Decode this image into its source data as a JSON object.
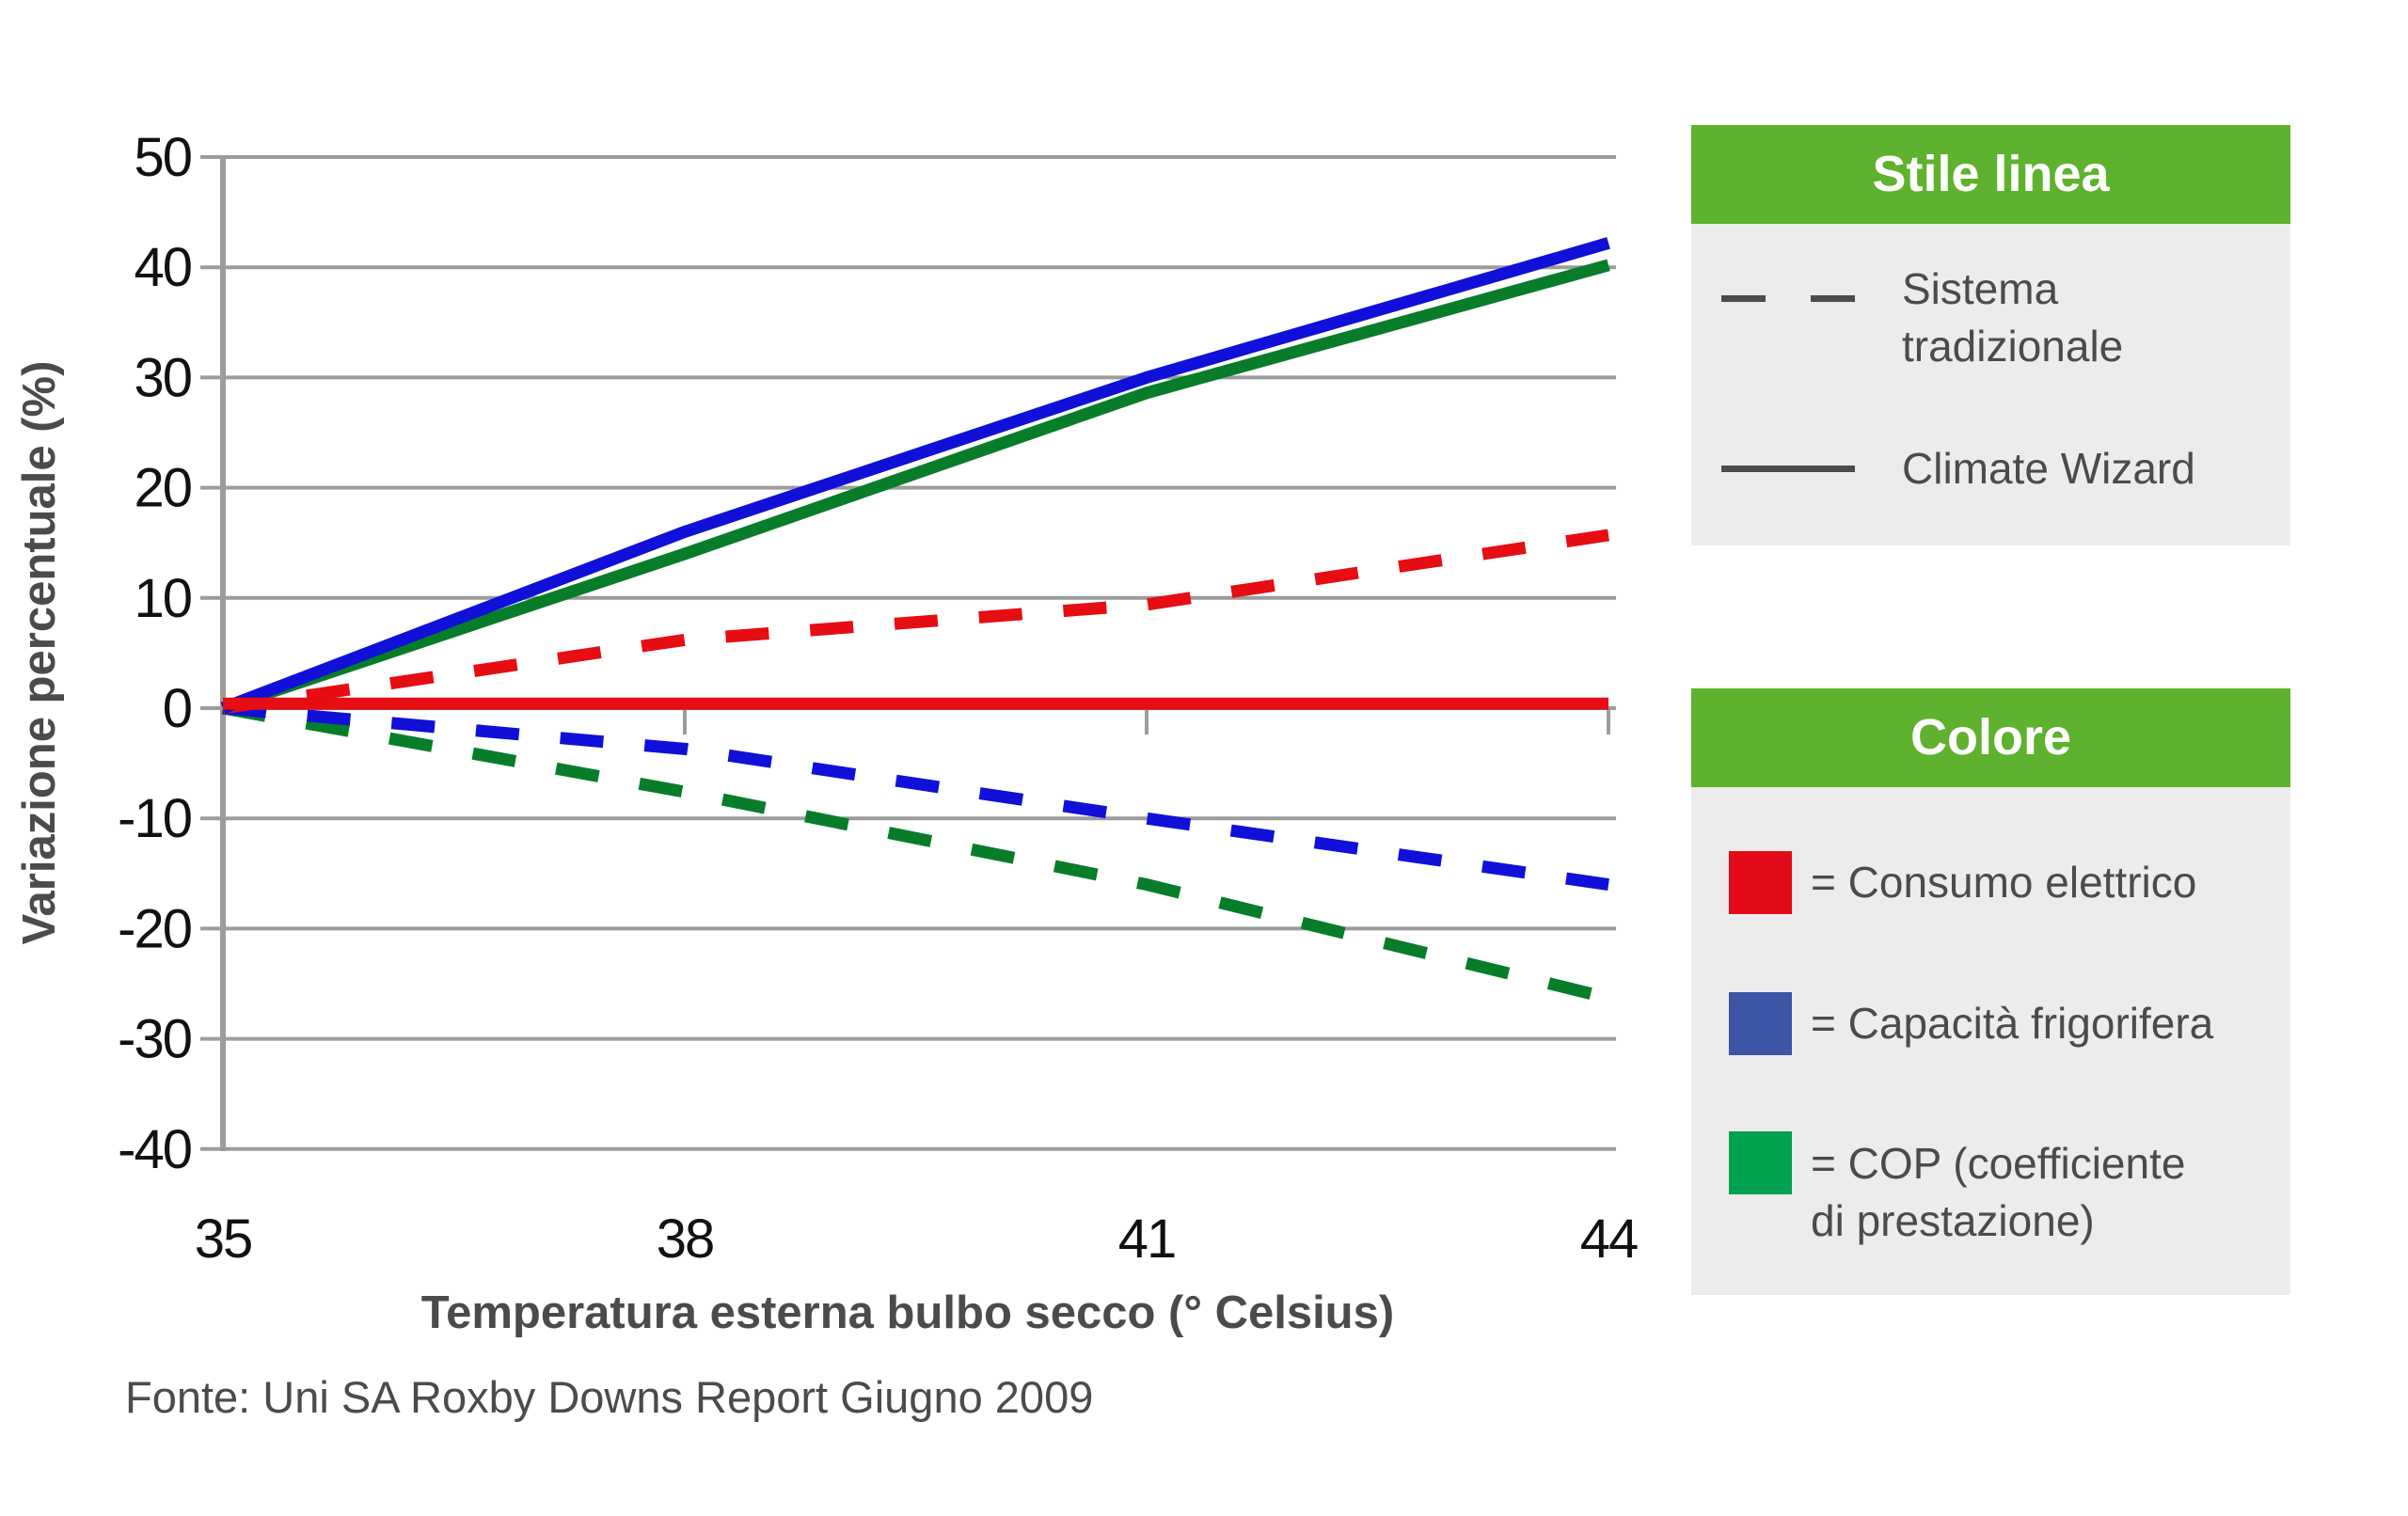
{
  "chart_data": {
    "type": "line",
    "title": "",
    "xlabel": "Temperatura esterna bulbo secco (° Celsius)",
    "ylabel": "Variazione percentuale (%)",
    "source_note": "Fonte: Uni SA Roxby Downs Report Giugno 2009",
    "xlim": [
      35,
      44
    ],
    "ylim": [
      -40,
      50
    ],
    "x_ticks": [
      35,
      38,
      41,
      44
    ],
    "y_ticks": [
      50,
      40,
      30,
      20,
      10,
      0,
      -10,
      -20,
      -30,
      -40
    ],
    "grid": "horizontal",
    "legend_position": "right",
    "series": [
      {
        "name": "Consumo elettrico - Climate Wizard",
        "color": "#e60d13",
        "style": "solid",
        "x": [
          35,
          44
        ],
        "y": [
          0.4,
          0.4
        ]
      },
      {
        "name": "Consumo elettrico - Sistema tradizionale",
        "color": "#e60d13",
        "style": "dashed",
        "x": [
          35,
          38,
          41,
          44
        ],
        "y": [
          0,
          6.2,
          9.4,
          15.7
        ]
      },
      {
        "name": "Capacità frigorifera - Climate Wizard",
        "color": "#1010d8",
        "style": "solid",
        "x": [
          35,
          38,
          41,
          44
        ],
        "y": [
          0,
          16,
          30,
          42.2
        ]
      },
      {
        "name": "Capacità frigorifera - Sistema tradizionale",
        "color": "#1010d8",
        "style": "dashed",
        "x": [
          35,
          38,
          41,
          44
        ],
        "y": [
          0,
          -3.7,
          -10,
          -16
        ]
      },
      {
        "name": "COP - Climate Wizard",
        "color": "#077d2a",
        "style": "solid",
        "x": [
          35,
          38,
          41,
          44
        ],
        "y": [
          0,
          14,
          28.6,
          40.2
        ]
      },
      {
        "name": "COP - Sistema tradizionale",
        "color": "#077d2a",
        "style": "dashed",
        "x": [
          35,
          38,
          41,
          44
        ],
        "y": [
          0,
          -7.6,
          -16,
          -26.3
        ]
      }
    ]
  },
  "legend_line_style": {
    "title": "Stile linea",
    "items": [
      {
        "style": "dashed",
        "label": "Sistema tradizionale"
      },
      {
        "style": "solid",
        "label": "Climate Wizard"
      }
    ]
  },
  "legend_color": {
    "title": "Colore",
    "items": [
      {
        "color": "#e30b17",
        "label": "= Consumo elettrico"
      },
      {
        "color": "#3c56a5",
        "label": "= Capacità frigorifera"
      },
      {
        "color": "#00a14f",
        "label": "= COP (coefficiente di prestazione)"
      }
    ]
  },
  "colors": {
    "legend_header_green": "#5eb22d",
    "legend_body_gray": "#ececec",
    "gridline_gray": "#9c9c9c",
    "text_dark_gray": "#4b4b4b",
    "line_red": "#e60d13",
    "line_blue": "#1010d8",
    "line_green": "#077d2a"
  }
}
